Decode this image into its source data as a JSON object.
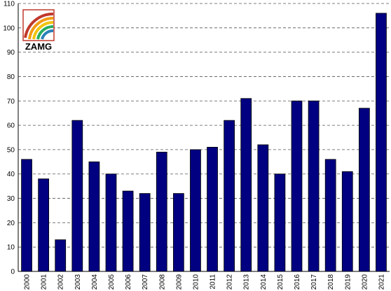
{
  "logo": {
    "text": "ZAMG"
  },
  "chart_data": {
    "type": "bar",
    "categories": [
      "2000",
      "2001",
      "2002",
      "2003",
      "2004",
      "2005",
      "2006",
      "2007",
      "2008",
      "2009",
      "2010",
      "2011",
      "2012",
      "2013",
      "2014",
      "2015",
      "2016",
      "2017",
      "2018",
      "2019",
      "2020",
      "2021"
    ],
    "values": [
      46,
      38,
      13,
      62,
      45,
      40,
      33,
      32,
      49,
      32,
      50,
      51,
      62,
      71,
      52,
      40,
      70,
      70,
      46,
      41,
      67,
      106
    ],
    "color": "#000080",
    "ylim": [
      0,
      110
    ],
    "yticks": [
      0,
      10,
      20,
      30,
      40,
      50,
      60,
      70,
      80,
      90,
      100,
      110
    ],
    "grid": true
  }
}
